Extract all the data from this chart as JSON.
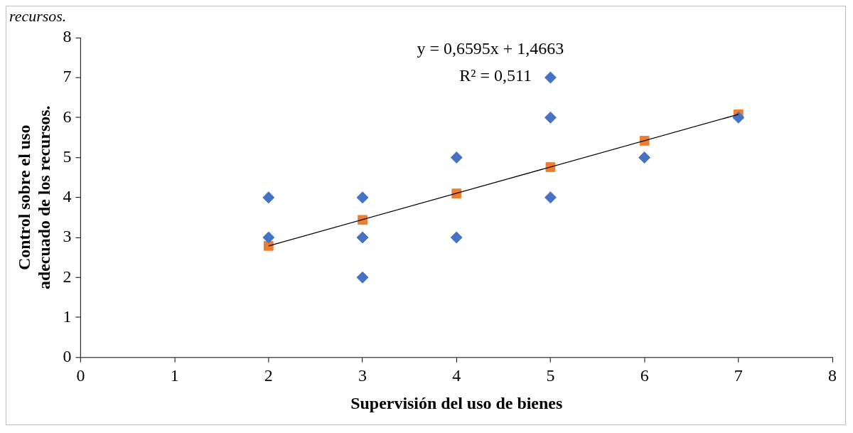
{
  "chart_data": {
    "type": "scatter",
    "xlabel": "Supervisión del uso de bienes",
    "ylabel": "Control sobre el uso adecuado de los recursos.",
    "x": [
      2,
      2,
      3,
      3,
      3,
      4,
      4,
      5,
      5,
      5,
      6,
      7
    ],
    "series": [
      {
        "type": "scatter",
        "marker": "diamond",
        "color": "#4472c4",
        "values": [
          4,
          3,
          4,
          3,
          2,
          5,
          3,
          7,
          6,
          4,
          5,
          6
        ]
      },
      {
        "type": "scatter",
        "marker": "square",
        "color": "#ed7d31",
        "x": [
          2,
          3,
          4,
          5,
          6,
          7
        ],
        "values": [
          2.79,
          3.44,
          4.1,
          4.76,
          5.42,
          6.08
        ]
      },
      {
        "type": "line",
        "marker": "none",
        "color": "#000000",
        "x": [
          2,
          7
        ],
        "values": [
          2.79,
          6.08
        ]
      }
    ],
    "annotations": [
      "recursos.",
      "y = 0,6595x + 1,4663",
      "R² = 0,511"
    ],
    "xlim": [
      0,
      8
    ],
    "xticks": [
      0,
      1,
      2,
      3,
      4,
      5,
      6,
      7,
      8
    ],
    "ylim": [
      0,
      8
    ],
    "yticks": [
      0,
      1,
      2,
      3,
      4,
      5,
      6,
      7,
      8
    ],
    "grid": false,
    "legend": false
  }
}
